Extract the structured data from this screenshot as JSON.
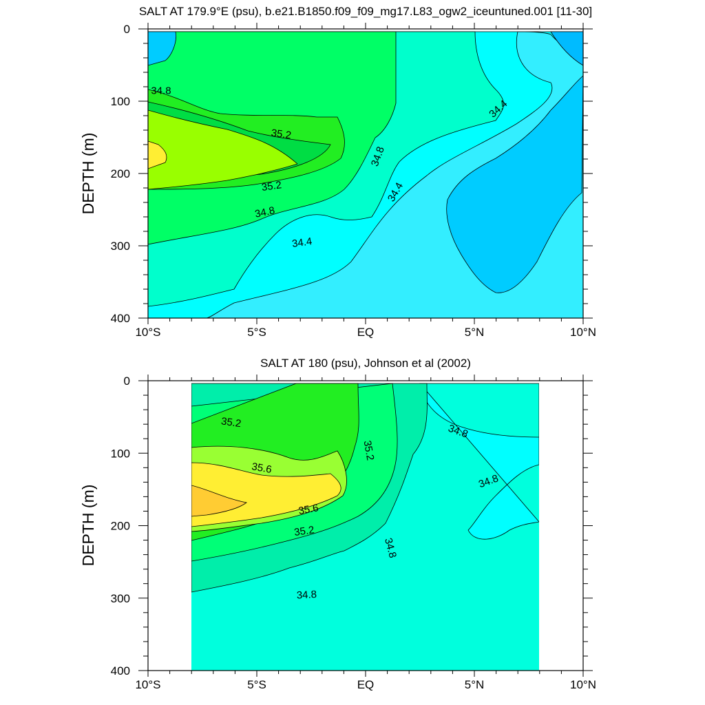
{
  "chart_data": [
    {
      "type": "contour",
      "title": "SALT AT 179.9°E (psu), b.e21.B1850.f09_f09_mg17.L83_ogw2_iceuntuned.001 [11-30]",
      "ylabel": "DEPTH (m)",
      "xlabel": "",
      "xlim": [
        -10,
        10
      ],
      "ylim": [
        400,
        0
      ],
      "xticks": [
        {
          "v": -10,
          "label": "10°S"
        },
        {
          "v": -5,
          "label": "5°S"
        },
        {
          "v": 0,
          "label": "EQ"
        },
        {
          "v": 5,
          "label": "5°N"
        },
        {
          "v": 10,
          "label": "10°N"
        }
      ],
      "yticks": [
        0,
        100,
        200,
        300,
        400
      ],
      "data_extent": {
        "lat": [
          -10,
          10
        ],
        "depth": [
          5,
          400
        ]
      },
      "contour_interval": 0.2,
      "contour_labels": [
        {
          "text": "34.8",
          "lat": -9.4,
          "depth": 90,
          "angle": 0
        },
        {
          "text": "35.2",
          "lat": -3.9,
          "depth": 150,
          "angle": 8
        },
        {
          "text": "35.2",
          "lat": -4.3,
          "depth": 222,
          "angle": -8
        },
        {
          "text": "34.8",
          "lat": -4.6,
          "depth": 258,
          "angle": -12
        },
        {
          "text": "34.4",
          "lat": -2.9,
          "depth": 300,
          "angle": -8
        },
        {
          "text": "34.8",
          "lat": 0.7,
          "depth": 178,
          "angle": -70
        },
        {
          "text": "34.4",
          "lat": 1.5,
          "depth": 228,
          "angle": -60
        },
        {
          "text": "34.4",
          "lat": 6.2,
          "depth": 114,
          "angle": -42
        }
      ]
    },
    {
      "type": "contour",
      "title": "SALT AT 180 (psu), Johnson et al (2002)",
      "ylabel": "DEPTH (m)",
      "xlabel": "",
      "xlim": [
        -10,
        10
      ],
      "ylim": [
        400,
        0
      ],
      "xticks": [
        {
          "v": -10,
          "label": "10°S"
        },
        {
          "v": -5,
          "label": "5°S"
        },
        {
          "v": 0,
          "label": "EQ"
        },
        {
          "v": 5,
          "label": "5°N"
        },
        {
          "v": 10,
          "label": "10°N"
        }
      ],
      "yticks": [
        0,
        100,
        200,
        300,
        400
      ],
      "data_extent": {
        "lat": [
          -8,
          8
        ],
        "depth": [
          5,
          400
        ]
      },
      "contour_interval": 0.2,
      "contour_labels": [
        {
          "text": "35.2",
          "lat": -6.2,
          "depth": 62,
          "angle": 8
        },
        {
          "text": "35.6",
          "lat": -4.8,
          "depth": 125,
          "angle": 10
        },
        {
          "text": "35.6",
          "lat": -2.6,
          "depth": 182,
          "angle": -10
        },
        {
          "text": "35.2",
          "lat": -2.8,
          "depth": 212,
          "angle": -8
        },
        {
          "text": "35.2",
          "lat": 0,
          "depth": 97,
          "angle": 80
        },
        {
          "text": "34.8",
          "lat": 1.0,
          "depth": 232,
          "angle": 75
        },
        {
          "text": "34.8",
          "lat": 4.2,
          "depth": 74,
          "angle": 20
        },
        {
          "text": "34.8",
          "lat": 5.7,
          "depth": 143,
          "angle": -20
        },
        {
          "text": "34.8",
          "lat": -2.7,
          "depth": 300,
          "angle": -3
        }
      ]
    }
  ]
}
